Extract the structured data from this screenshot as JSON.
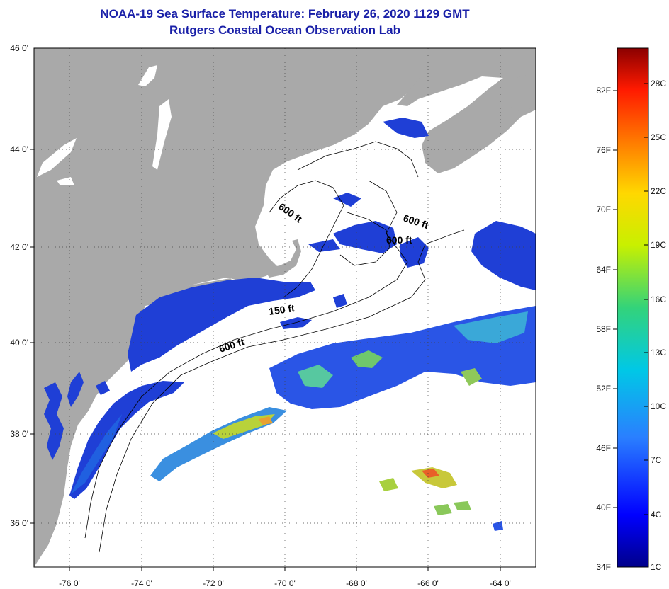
{
  "title": "NOAA-19 Sea Surface Temperature:  February 26, 2020 1129 GMT",
  "subtitle": "Rutgers Coastal Ocean Observation Lab",
  "map": {
    "lon_range": [
      -77,
      -63
    ],
    "lat_range": [
      35,
      46
    ],
    "lon_ticks": [
      "-76 0'",
      "-74 0'",
      "-72 0'",
      "-70 0'",
      "-68 0'",
      "-66 0'",
      "-64 0'"
    ],
    "lat_ticks": [
      "46 0'",
      "44 0'",
      "42 0'",
      "40 0'",
      "38 0'",
      "36 0'"
    ],
    "isobath_labels": [
      "600 ft",
      "600 ft",
      "600 ft",
      "150 ft",
      "600 ft"
    ],
    "colors": {
      "land": "#a9a9a9",
      "cloud": "#ffffff",
      "cold_water": "#1f3fd6"
    }
  },
  "colorbar": {
    "fahrenheit": [
      "82F",
      "76F",
      "70F",
      "64F",
      "58F",
      "52F",
      "46F",
      "40F",
      "34F"
    ],
    "celsius": [
      "28C",
      "25C",
      "22C",
      "19C",
      "16C",
      "13C",
      "10C",
      "7C",
      "4C",
      "1C"
    ],
    "stops": [
      "#00008a",
      "#0000ff",
      "#2a7fff",
      "#00c8e6",
      "#33d37a",
      "#c8f000",
      "#ffd800",
      "#ff7a00",
      "#ff1a00",
      "#8b0000"
    ]
  }
}
